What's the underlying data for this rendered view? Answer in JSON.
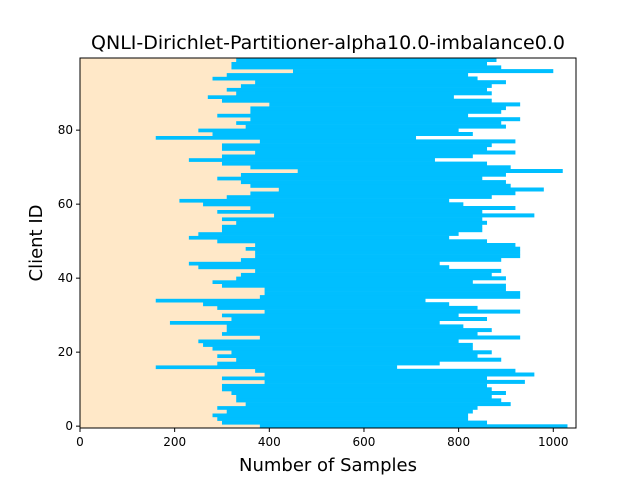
{
  "chart_data": {
    "type": "bar",
    "orientation": "horizontal-stacked",
    "title": "QNLI-Dirichlet-Partitioner-alpha10.0-imbalance0.0",
    "xlabel": "Number of Samples",
    "ylabel": "Client ID",
    "xlim": [
      0,
      1048
    ],
    "ylim": [
      -0.5,
      99.5
    ],
    "x_ticks": [
      "0",
      "200",
      "400",
      "600",
      "800",
      "1000"
    ],
    "y_ticks": [
      "0",
      "20",
      "40",
      "60",
      "80"
    ],
    "grid": false,
    "legend": "none",
    "colors": {
      "class_0": "#FFE8C8",
      "class_1": "#00BFFF",
      "background": "#ffffff",
      "axes": "#000000"
    },
    "series": [
      {
        "values": [
          380,
          300,
          290,
          280,
          310,
          290,
          350,
          330,
          330,
          320,
          300,
          300,
          390,
          300,
          390,
          370,
          160,
          290,
          330,
          290,
          320,
          280,
          260,
          250,
          380,
          300,
          310,
          310,
          190,
          320,
          300,
          390,
          290,
          260,
          160,
          380,
          390,
          390,
          300,
          280,
          330,
          340,
          370,
          250,
          230,
          340,
          370,
          370,
          350,
          370,
          290,
          230,
          250,
          300,
          300,
          330,
          300,
          410,
          290,
          360,
          260,
          210,
          310,
          360,
          420,
          360,
          340,
          290,
          340,
          460,
          360,
          300,
          230,
          300,
          370,
          300,
          300,
          380,
          160,
          280,
          250,
          350,
          330,
          360,
          290,
          360,
          360,
          400,
          300,
          270,
          330,
          310,
          340,
          370,
          280,
          310,
          450,
          320,
          320,
          330
        ]
      },
      {
        "values": [
          650,
          560,
          530,
          540,
          520,
          550,
          560,
          560,
          540,
          580,
          570,
          560,
          550,
          560,
          570,
          550,
          510,
          470,
          560,
          550,
          550,
          550,
          570,
          550,
          550,
          540,
          560,
          500,
          570,
          540,
          500,
          540,
          550,
          520,
          570,
          550,
          540,
          510,
          600,
          550,
          570,
          530,
          520,
          530,
          530,
          550,
          560,
          560,
          580,
          550,
          570,
          550,
          550,
          550,
          550,
          530,
          550,
          550,
          560,
          560,
          550,
          570,
          560,
          560,
          560,
          550,
          560,
          560,
          560,
          560,
          550,
          560,
          520,
          530,
          550,
          560,
          570,
          540,
          550,
          550,
          550,
          550,
          560,
          570,
          530,
          530,
          540,
          530,
          570,
          520,
          540,
          550,
          530,
          530,
          560,
          510,
          550,
          570,
          540,
          550
        ]
      }
    ]
  }
}
